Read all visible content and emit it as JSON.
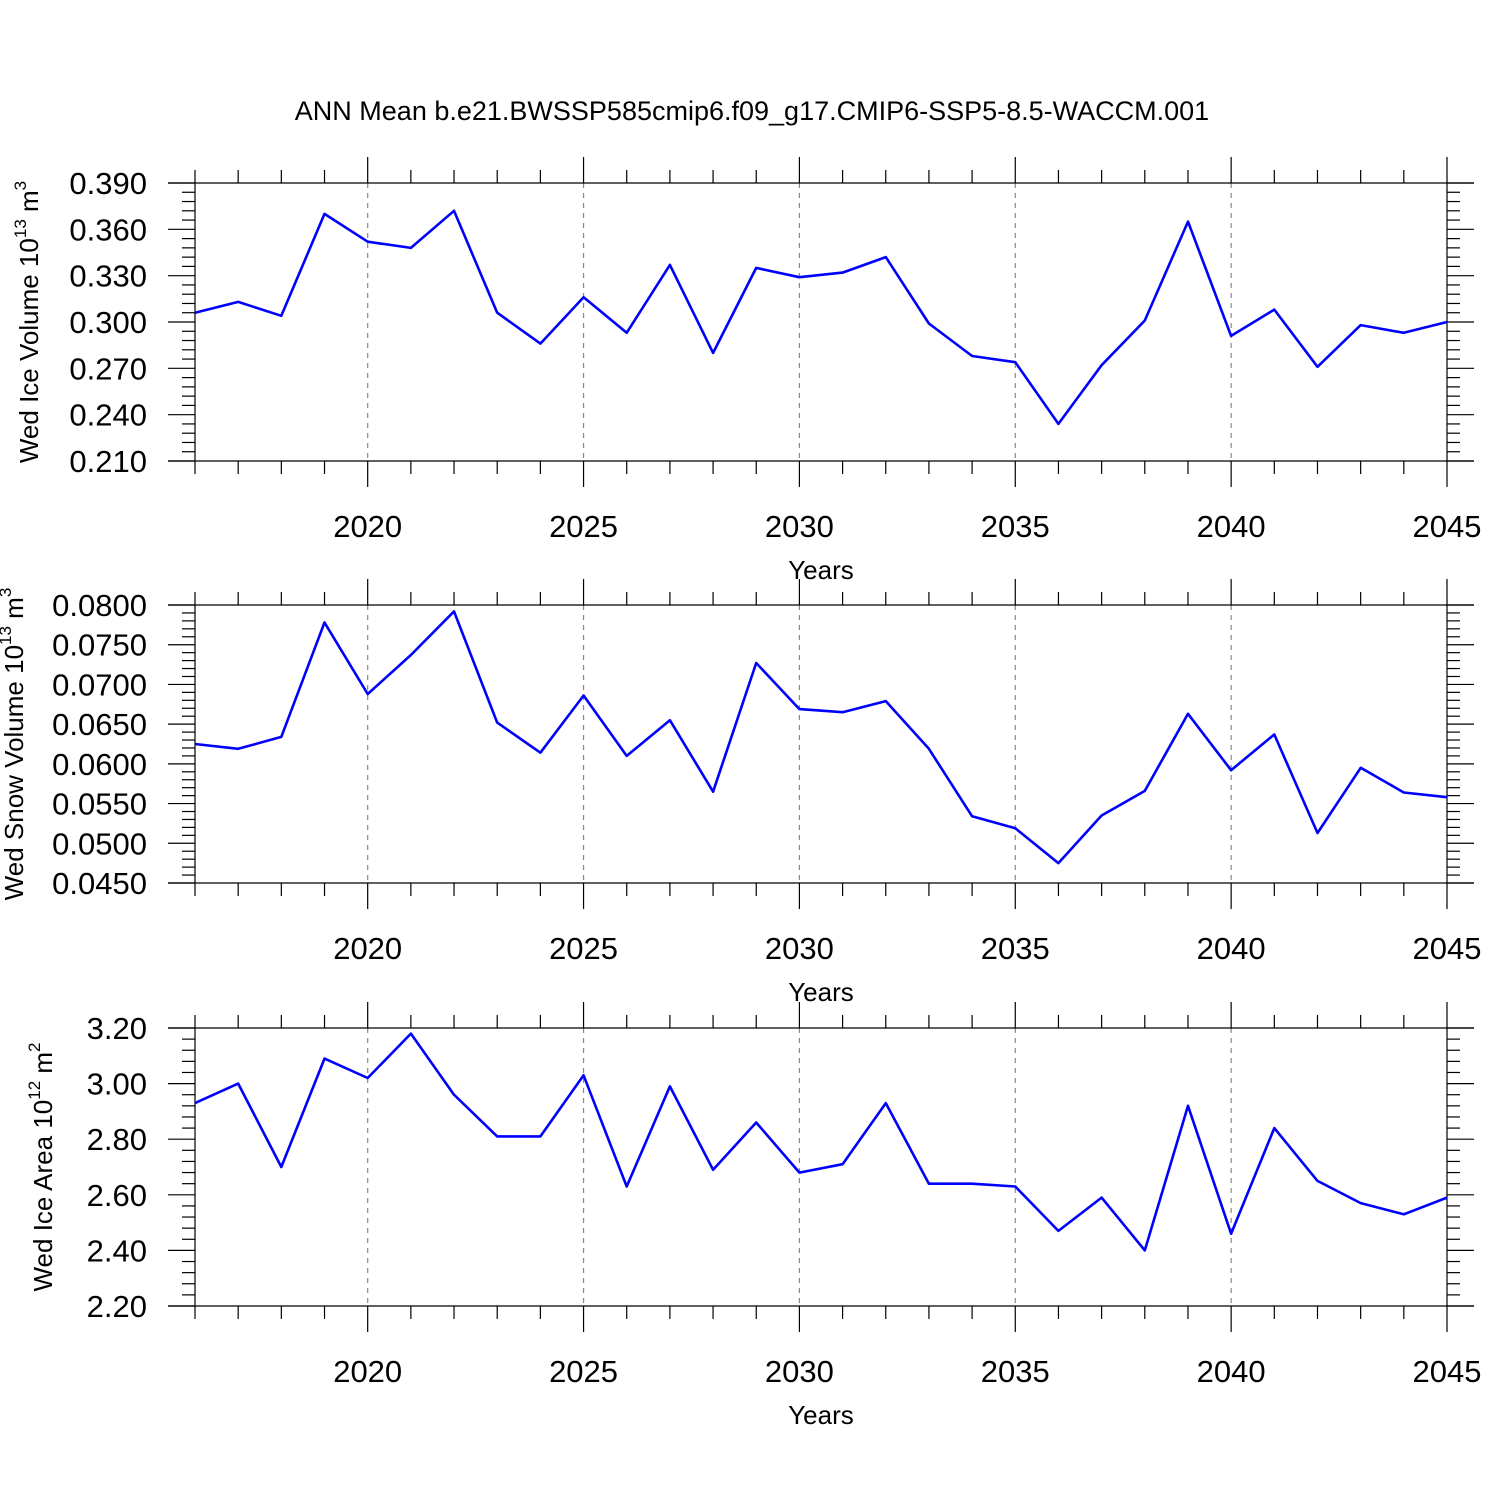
{
  "title": "ANN Mean b.e21.BWSSP585cmip6.f09_g17.CMIP6-SSP5-8.5-WACCM.001",
  "chart_data": [
    {
      "type": "line",
      "ylabel_main": "Wed Ice Volume 10",
      "ylabel_exp": "13",
      "ylabel_unit": "m",
      "ylabel_unit_exp": "3",
      "xlabel": "Years",
      "xlim": [
        2016,
        2045
      ],
      "ylim": [
        0.21,
        0.39
      ],
      "xticks": [
        "2020",
        "2025",
        "2030",
        "2035",
        "2040",
        "2045"
      ],
      "yticks": [
        "0.210",
        "0.240",
        "0.270",
        "0.300",
        "0.330",
        "0.360",
        "0.390"
      ],
      "grid": "dashed vertical at major x ticks",
      "series": [
        {
          "color": "#0000ff",
          "x": [
            2016,
            2017,
            2018,
            2019,
            2020,
            2021,
            2022,
            2023,
            2024,
            2025,
            2026,
            2027,
            2028,
            2029,
            2030,
            2031,
            2032,
            2033,
            2034,
            2035,
            2036,
            2037,
            2038,
            2039,
            2040,
            2041,
            2042,
            2043,
            2044,
            2045
          ],
          "values": [
            0.306,
            0.313,
            0.304,
            0.37,
            0.352,
            0.348,
            0.372,
            0.306,
            0.286,
            0.316,
            0.293,
            0.337,
            0.28,
            0.335,
            0.329,
            0.332,
            0.342,
            0.299,
            0.278,
            0.274,
            0.234,
            0.272,
            0.301,
            0.365,
            0.291,
            0.308,
            0.271,
            0.298,
            0.293,
            0.3
          ]
        }
      ]
    },
    {
      "type": "line",
      "ylabel_main": "Wed Snow Volume 10",
      "ylabel_exp": "13",
      "ylabel_unit": "m",
      "ylabel_unit_exp": "3",
      "xlabel": "Years",
      "xlim": [
        2016,
        2045
      ],
      "ylim": [
        0.045,
        0.08
      ],
      "xticks": [
        "2020",
        "2025",
        "2030",
        "2035",
        "2040",
        "2045"
      ],
      "yticks": [
        "0.0450",
        "0.0500",
        "0.0550",
        "0.0600",
        "0.0650",
        "0.0700",
        "0.0750",
        "0.0800"
      ],
      "grid": "dashed vertical at major x ticks",
      "series": [
        {
          "color": "#0000ff",
          "x": [
            2016,
            2017,
            2018,
            2019,
            2020,
            2021,
            2022,
            2023,
            2024,
            2025,
            2026,
            2027,
            2028,
            2029,
            2030,
            2031,
            2032,
            2033,
            2034,
            2035,
            2036,
            2037,
            2038,
            2039,
            2040,
            2041,
            2042,
            2043,
            2044,
            2045
          ],
          "values": [
            0.0625,
            0.0619,
            0.0634,
            0.0778,
            0.0688,
            0.0737,
            0.0792,
            0.0652,
            0.0614,
            0.0686,
            0.061,
            0.0655,
            0.0565,
            0.0727,
            0.0669,
            0.0665,
            0.0679,
            0.0619,
            0.0534,
            0.0519,
            0.0475,
            0.0535,
            0.0566,
            0.0663,
            0.0592,
            0.0637,
            0.0513,
            0.0595,
            0.0564,
            0.0558
          ]
        }
      ]
    },
    {
      "type": "line",
      "ylabel_main": "Wed Ice Area 10",
      "ylabel_exp": "12",
      "ylabel_unit": "m",
      "ylabel_unit_exp": "2",
      "xlabel": "Years",
      "xlim": [
        2016,
        2045
      ],
      "ylim": [
        2.2,
        3.2
      ],
      "xticks": [
        "2020",
        "2025",
        "2030",
        "2035",
        "2040",
        "2045"
      ],
      "yticks": [
        "2.20",
        "2.40",
        "2.60",
        "2.80",
        "3.00",
        "3.20"
      ],
      "grid": "dashed vertical at major x ticks",
      "series": [
        {
          "color": "#0000ff",
          "x": [
            2016,
            2017,
            2018,
            2019,
            2020,
            2021,
            2022,
            2023,
            2024,
            2025,
            2026,
            2027,
            2028,
            2029,
            2030,
            2031,
            2032,
            2033,
            2034,
            2035,
            2036,
            2037,
            2038,
            2039,
            2040,
            2041,
            2042,
            2043,
            2044,
            2045
          ],
          "values": [
            2.93,
            3.0,
            2.7,
            3.09,
            3.02,
            3.18,
            2.96,
            2.81,
            2.81,
            3.03,
            2.63,
            2.99,
            2.69,
            2.86,
            2.68,
            2.71,
            2.93,
            2.64,
            2.64,
            2.63,
            2.47,
            2.59,
            2.4,
            2.92,
            2.46,
            2.84,
            2.65,
            2.57,
            2.53,
            2.59
          ]
        }
      ]
    }
  ]
}
